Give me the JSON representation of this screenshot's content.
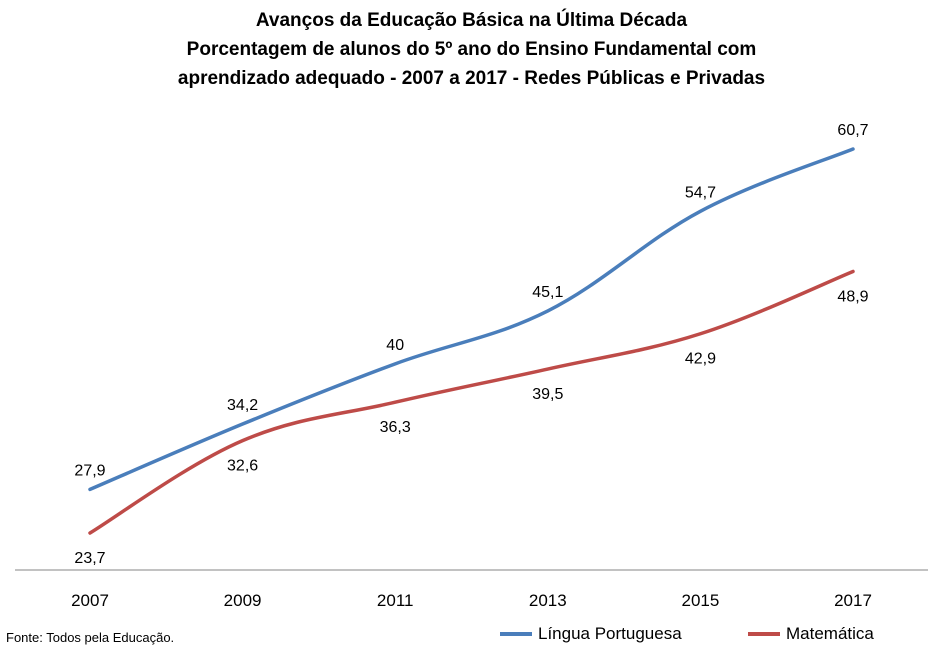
{
  "chart_data": {
    "type": "line",
    "title": [
      "Avanços da Educação Básica na Última Década",
      "Porcentagem de alunos do 5º ano do Ensino Fundamental com",
      "aprendizado adequado - 2007 a 2017 - Redes Públicas e Privadas"
    ],
    "categories": [
      "2007",
      "2009",
      "2011",
      "2013",
      "2015",
      "2017"
    ],
    "series": [
      {
        "name": "Língua Portuguesa",
        "values": [
          27.9,
          34.2,
          40,
          45.1,
          54.7,
          60.7
        ],
        "labels": [
          "27,9",
          "34,2",
          "40",
          "45,1",
          "54,7",
          "60,7"
        ],
        "color": "#4a7ebb",
        "label_position": "above"
      },
      {
        "name": "Matemática",
        "values": [
          23.7,
          32.6,
          36.3,
          39.5,
          42.9,
          48.9
        ],
        "labels": [
          "23,7",
          "32,6",
          "36,3",
          "39,5",
          "42,9",
          "48,9"
        ],
        "color": "#be4b48",
        "label_position": "below"
      }
    ],
    "ylim": [
      20,
      63
    ],
    "grid": false,
    "legend_position": "bottom-right",
    "source": "Fonte: Todos pela Educação."
  }
}
